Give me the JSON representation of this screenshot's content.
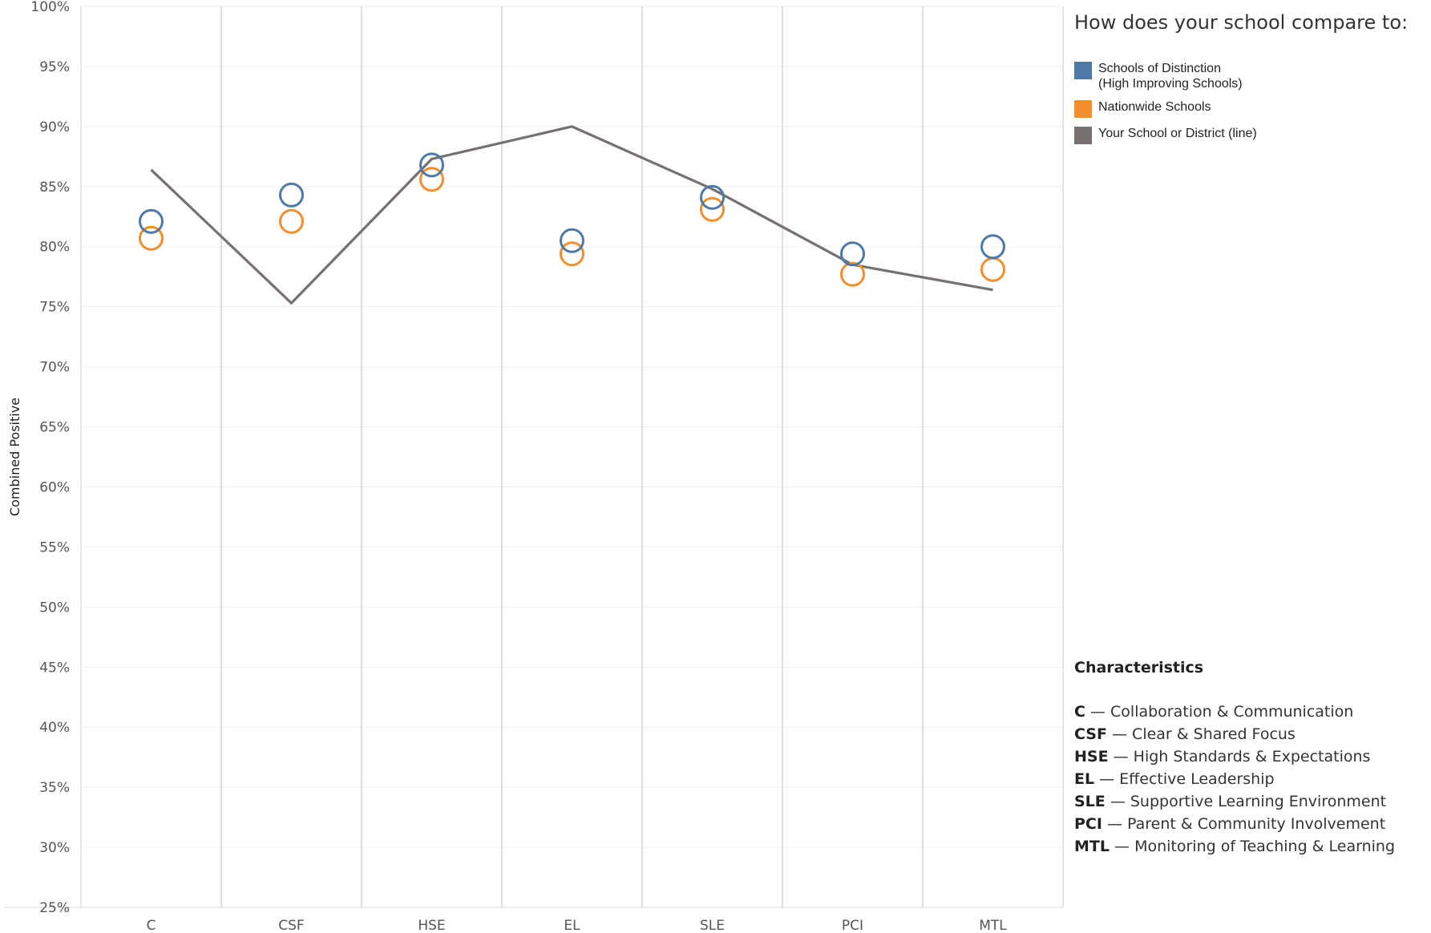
{
  "chart_data": {
    "type": "scatter",
    "categories": [
      "C",
      "CSF",
      "HSE",
      "EL",
      "SLE",
      "PCI",
      "MTL"
    ],
    "ylabel": "Combined Positive",
    "ylim": [
      25,
      100
    ],
    "yticks": [
      25,
      30,
      35,
      40,
      45,
      50,
      55,
      60,
      65,
      70,
      75,
      80,
      85,
      90,
      95,
      100
    ],
    "ytick_labels": [
      "25%",
      "30%",
      "35%",
      "40%",
      "45%",
      "50%",
      "55%",
      "60%",
      "65%",
      "70%",
      "75%",
      "80%",
      "85%",
      "90%",
      "95%",
      "100%"
    ],
    "grid": true,
    "series": [
      {
        "name": "Schools of Distinction\n(High Improving Schools)",
        "mark": "circle",
        "color": "#4e79a7",
        "values": [
          82.1,
          84.3,
          86.8,
          80.5,
          84.1,
          79.4,
          80.0
        ]
      },
      {
        "name": "Nationwide Schools",
        "mark": "circle",
        "color": "#f28e2b",
        "values": [
          80.7,
          82.1,
          85.6,
          79.4,
          83.1,
          77.7,
          78.1
        ]
      },
      {
        "name": "Your School or District (line)",
        "mark": "line",
        "color": "#76706e",
        "values": [
          86.4,
          75.3,
          87.3,
          90.0,
          84.8,
          78.5,
          76.4
        ]
      }
    ]
  },
  "legend": {
    "title": "How does your school compare to:",
    "items": [
      {
        "label": "Schools of Distinction\n(High Improving Schools)",
        "color": "#4e79a7"
      },
      {
        "label": "Nationwide Schools",
        "color": "#f28e2b"
      },
      {
        "label": "Your School or District (line)",
        "color": "#76706e"
      }
    ]
  },
  "characteristics": {
    "title": "Characteristics",
    "items": [
      {
        "code": "C",
        "desc": " — Collaboration & Communication"
      },
      {
        "code": "CSF",
        "desc": " — Clear & Shared Focus"
      },
      {
        "code": "HSE",
        "desc": " — High Standards & Expectations"
      },
      {
        "code": "EL",
        "desc": " — Effective Leadership"
      },
      {
        "code": "SLE",
        "desc": " — Supportive Learning Environment"
      },
      {
        "code": "PCI",
        "desc": " — Parent & Community Involvement"
      },
      {
        "code": "MTL",
        "desc": " — Monitoring of Teaching & Learning"
      }
    ]
  }
}
